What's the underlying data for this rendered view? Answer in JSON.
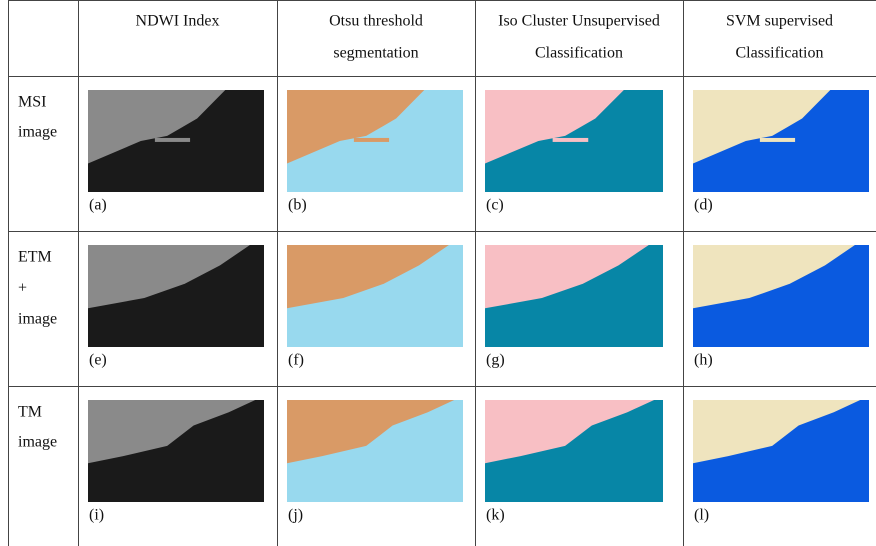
{
  "header": {
    "columns": [
      {
        "lines": [
          "NDWI Index"
        ]
      },
      {
        "lines": [
          "Otsu threshold",
          "segmentation"
        ]
      },
      {
        "lines": [
          "Iso Cluster Unsupervised",
          "Classification"
        ]
      },
      {
        "lines": [
          "SVM supervised",
          "Classification"
        ]
      }
    ]
  },
  "rows": [
    {
      "label_lines": [
        "MSI",
        "image"
      ],
      "captions": [
        "(a)",
        "(b)",
        "(c)",
        "(d)"
      ]
    },
    {
      "label_lines": [
        "ETM",
        "+",
        "image"
      ],
      "captions": [
        "(e)",
        "(f)",
        "(g)",
        "(h)"
      ]
    },
    {
      "label_lines": [
        "TM",
        "image"
      ],
      "captions": [
        "(i)",
        "(j)",
        "(k)",
        "(l)"
      ]
    }
  ]
}
